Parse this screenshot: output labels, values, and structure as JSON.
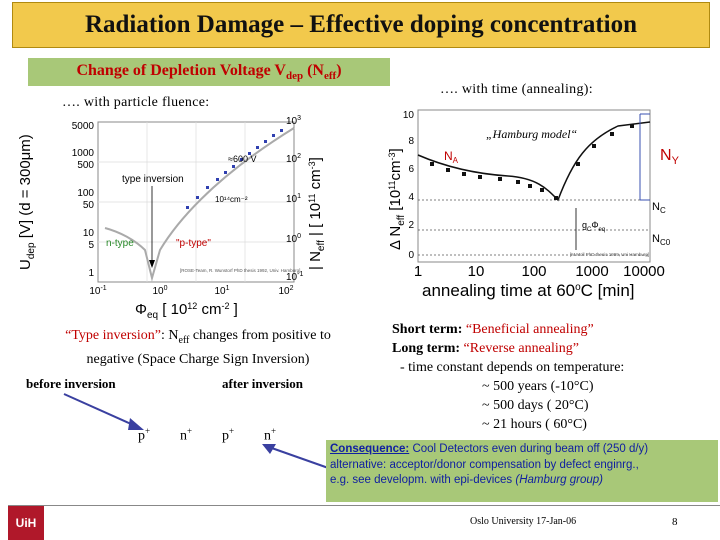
{
  "title": "Radiation Damage – Effective doping concentration",
  "subtitle_main": "Change of Depletion Voltage V",
  "subtitle_sub_dep": "dep",
  "subtitle_neff": " (N",
  "subtitle_sub_eff": "eff",
  "subtitle_close": ")",
  "with_fluence": "…. with particle fluence:",
  "with_time": "…. with time (annealing):",
  "left_chart": {
    "ylabel_left": "U",
    "ylabel_left_sub": "dep",
    "ylabel_left_rest": " [V] (d = 300μm)",
    "ylabel_right": "| N",
    "ylabel_right_sub": "eff",
    "ylabel_right_rest": " | [ 10",
    "ylabel_right_sup": "11",
    "ylabel_right_unit": " cm",
    "ylabel_right_unit_sup": "-3",
    "ylabel_right_end": "]",
    "left_ticks": [
      "5000",
      "1000",
      "500",
      "100",
      "50",
      "10",
      "5",
      "1"
    ],
    "right_ticks": [
      "10",
      "10",
      "10",
      "10",
      "10"
    ],
    "right_ticks_sup": [
      "3",
      "2",
      "1",
      "0",
      "-1"
    ],
    "x_ticks": [
      "10",
      "10",
      "10",
      "10"
    ],
    "x_ticks_sup": [
      "-1",
      "0",
      "1",
      "2"
    ],
    "xlabel_phi": "Φ",
    "xlabel_sub": "eq",
    "xlabel_rest": "  [ 10",
    "xlabel_sup": "12",
    "xlabel_unit": " cm",
    "xlabel_unit_sup": "-2",
    "xlabel_end": " ]",
    "annot_600v": "≈600 V",
    "annot_type_inversion": "type inversion",
    "annot_fluence": "10¹⁴cm⁻²",
    "annot_ntype": "n-type",
    "annot_ptype": "\"p-type\"",
    "credit": "[ROSE-Team, R. Wunstorf PhD thesis 1992, Univ. Hamburg]"
  },
  "right_chart": {
    "ylabel": "Δ N",
    "ylabel_sub": "eff",
    "ylabel_rest": " [10",
    "ylabel_sup": "11",
    "ylabel_unit": "cm",
    "ylabel_unit_sup": "-3",
    "ylabel_end": "]",
    "y_ticks": [
      "10",
      "8",
      "6",
      "4",
      "2",
      "0"
    ],
    "x_ticks": [
      "1",
      "10",
      "100",
      "1000",
      "10000"
    ],
    "xlabel": "annealing time at 60",
    "xlabel_sup": "o",
    "xlabel_rest": "C [min]",
    "model": "„Hamburg model“",
    "na": "N",
    "na_sub": "A",
    "ny": "N",
    "ny_sub": "Y",
    "nc": "N",
    "nc_sub": "C",
    "nc0": "N",
    "nc0_sub": "C0",
    "gc": "g",
    "gc_sub": "C",
    "gc_phi": "Φ",
    "gc_phi_sub": "eq",
    "credit": "[M.Moll PhD thesis 1999, Uni Hamburg]"
  },
  "type_inversion_label": "“Type inversion”",
  "type_inversion_text1": ": N",
  "type_inversion_sub": "eff",
  "type_inversion_text2": " changes from positive to",
  "type_inversion_line2": "negative (Space Charge Sign Inversion)",
  "before_inversion": "before inversion",
  "after_inversion": "after inversion",
  "p_plus": "p",
  "n_plus": "n",
  "plus": "+",
  "short_term_label": "Short term: ",
  "short_term_value": "“Beneficial annealing”",
  "long_term_label": "Long term: ",
  "long_term_value": "“Reverse annealing”",
  "time_constant": "- time constant depends on temperature:",
  "tc_lines": [
    "~ 500 years  (-10°C)",
    "~ 500 days  ( 20°C)",
    "~  21 hours  ( 60°C)"
  ],
  "consequence_label": "Consequence:",
  "consequence_text": " Cool Detectors even during beam off (250 d/y)",
  "consequence_line2": "alternative: acceptor/donor compensation by defect enginrg.,",
  "consequence_line3": "e.g. see developm. with epi-devices ",
  "consequence_hamburg": "(Hamburg group)",
  "footer_center": "Oslo University 17-Jan-06",
  "page_number": "8",
  "logo_text": "UiH",
  "colors": {
    "title_bg": "#f2c94c",
    "green_box": "#a8c878",
    "red": "#c00000",
    "blue": "#1020a0"
  }
}
